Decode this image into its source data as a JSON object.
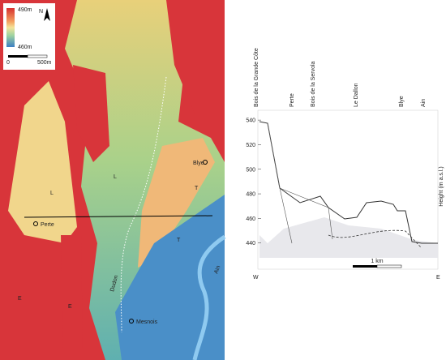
{
  "map": {
    "legend": {
      "top": "490m",
      "bottom": "460m"
    },
    "scale": {
      "start": "0",
      "end": "500m"
    },
    "north": "N",
    "labels": [
      "L",
      "L",
      "T",
      "T",
      "E",
      "E",
      "Perte",
      "Blye",
      "Mesnois",
      "Dudon",
      "Ain"
    ]
  },
  "section": {
    "ylabel": "Height (m a.s.l.)",
    "ylim": [
      420,
      548
    ],
    "yticks": [
      440,
      460,
      480,
      500,
      520,
      540
    ],
    "top_labels": [
      "Bois de la Grande Côte",
      "Perte",
      "Bois de la Servola",
      "Le Dallon",
      "Blye",
      "Ain"
    ],
    "west": "W",
    "east": "E",
    "scale": "1 km"
  }
}
